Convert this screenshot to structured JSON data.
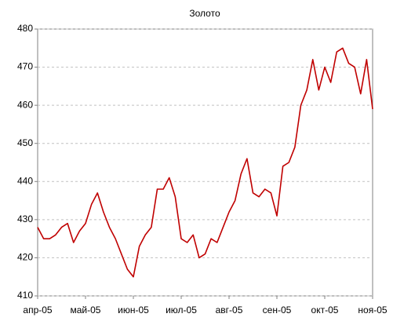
{
  "chart_data": {
    "type": "line",
    "title": "Золото",
    "categories": [
      "апр-05",
      null,
      null,
      null,
      null,
      null,
      null,
      null,
      "май-05",
      null,
      null,
      null,
      null,
      null,
      null,
      null,
      "июн-05",
      null,
      null,
      null,
      null,
      null,
      null,
      null,
      "июл-05",
      null,
      null,
      null,
      null,
      null,
      null,
      null,
      "авг-05",
      null,
      null,
      null,
      null,
      null,
      null,
      null,
      "сен-05",
      null,
      null,
      null,
      null,
      null,
      null,
      null,
      "окт-05",
      null,
      null,
      null,
      null,
      null,
      null,
      null,
      "ноя-05"
    ],
    "series": [
      {
        "name": "Золото",
        "color": "#c00000",
        "values": [
          428,
          425,
          425,
          426,
          428,
          429,
          424,
          427,
          429,
          434,
          437,
          432,
          428,
          425,
          421,
          417,
          415,
          423,
          426,
          428,
          438,
          438,
          441,
          436,
          425,
          424,
          426,
          420,
          421,
          425,
          424,
          428,
          432,
          435,
          442,
          446,
          437,
          436,
          438,
          437,
          431,
          444,
          445,
          449,
          460,
          464,
          472,
          464,
          470,
          466,
          474,
          475,
          471,
          470,
          463,
          472,
          459
        ]
      }
    ],
    "ylim": [
      410,
      480
    ],
    "yticks": [
      410,
      420,
      430,
      440,
      450,
      460,
      470,
      480
    ],
    "grid": true
  }
}
